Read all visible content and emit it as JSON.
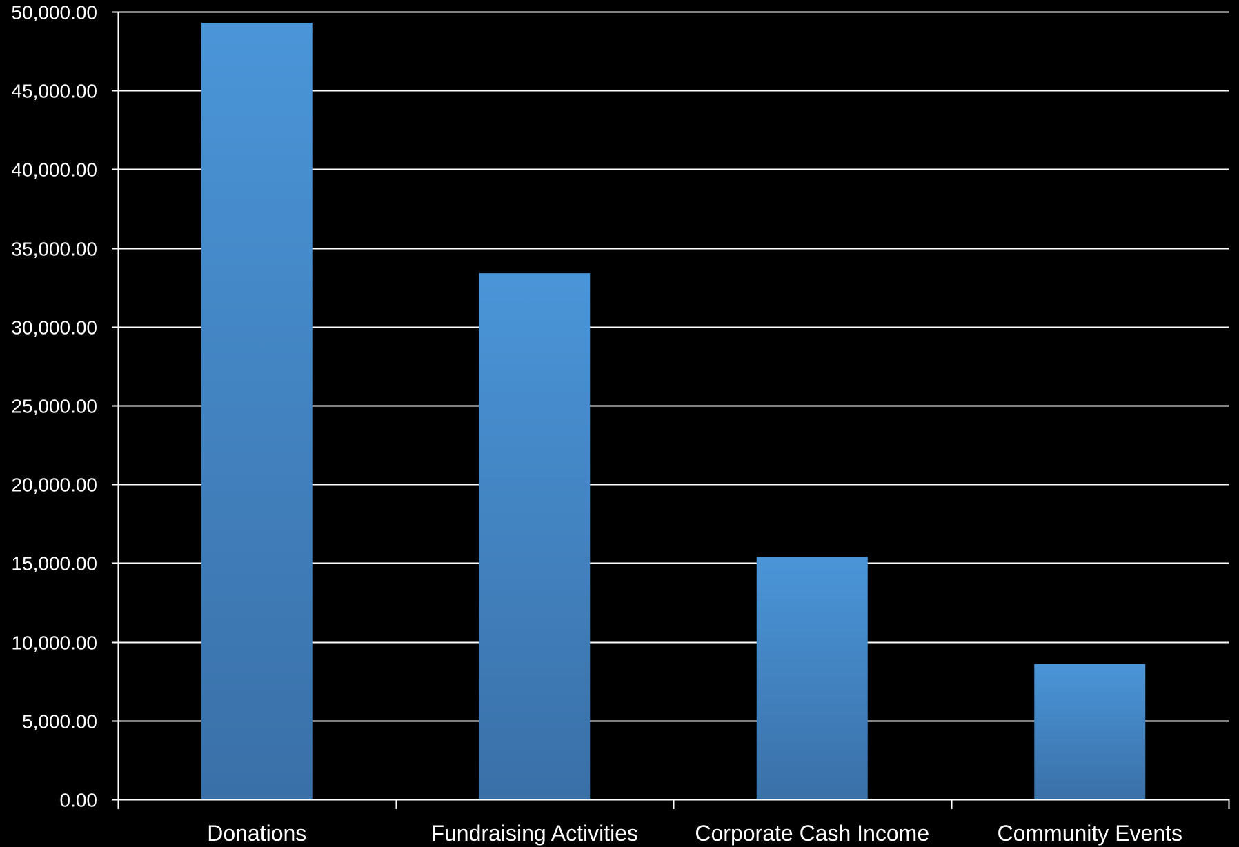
{
  "chart_data": {
    "type": "bar",
    "title": "",
    "xlabel": "",
    "ylabel": "",
    "categories": [
      "Donations",
      "Fundraising Activities",
      "Corporate Cash Income",
      "Community Events"
    ],
    "values": [
      49300,
      33400,
      15400,
      8600
    ],
    "ylim": [
      0,
      50000
    ],
    "y_ticks": [
      0,
      5000,
      10000,
      15000,
      20000,
      25000,
      30000,
      35000,
      40000,
      45000,
      50000
    ],
    "y_tick_labels": [
      "0.00",
      "5,000.00",
      "10,000.00",
      "15,000.00",
      "20,000.00",
      "25,000.00",
      "30,000.00",
      "35,000.00",
      "40,000.00",
      "45,000.00",
      "50,000.00"
    ],
    "grid": true,
    "legend": "none",
    "colors": {
      "background": "#000000",
      "bar_top": "#4a95d8",
      "bar_bottom": "#3a70a8",
      "gridline": "#ffffff",
      "text": "#ffffff"
    }
  }
}
